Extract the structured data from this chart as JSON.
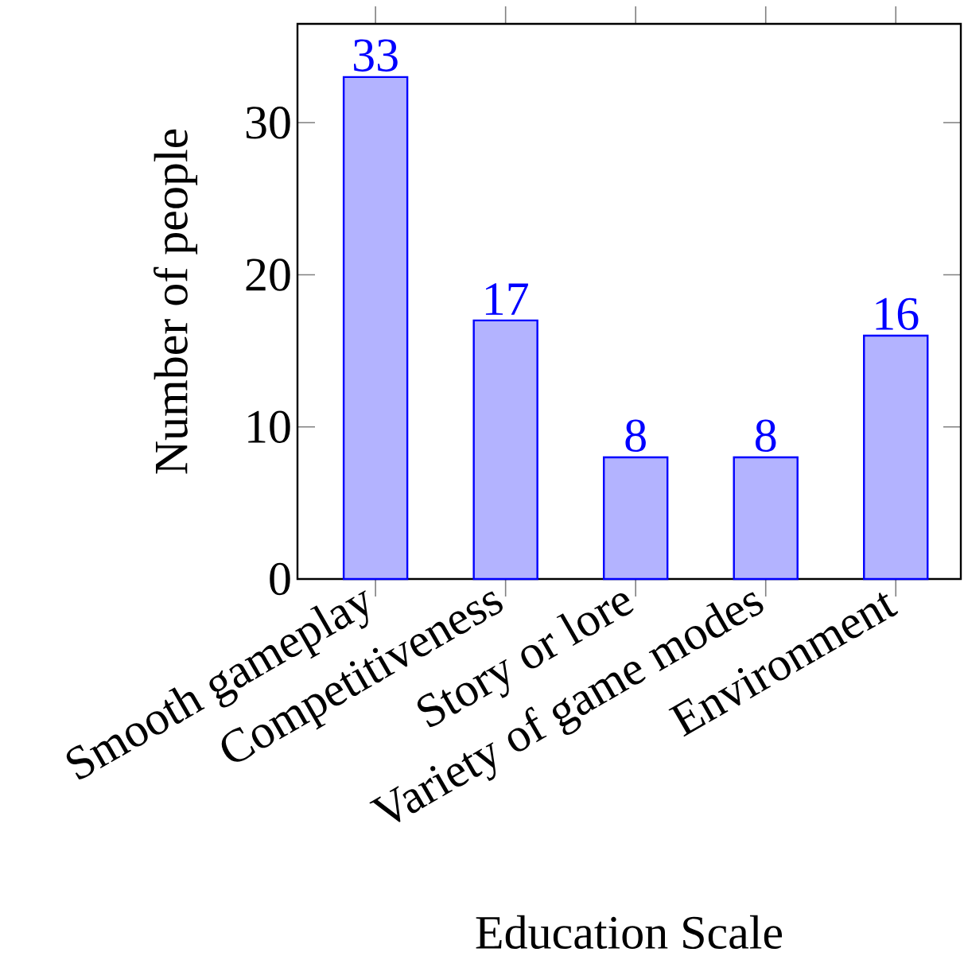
{
  "chart_data": {
    "type": "bar",
    "xlabel": "Education Scale",
    "ylabel": "Number of people",
    "categories": [
      "Smooth gameplay",
      "Competitiveness",
      "Story or lore",
      "Variety of game modes",
      "Environment"
    ],
    "values": [
      33,
      17,
      8,
      8,
      16
    ],
    "color": "#b3b3ff",
    "ylim": [
      0,
      36.5
    ],
    "yticks": [
      0,
      10,
      20,
      30
    ],
    "data_labels": true
  }
}
